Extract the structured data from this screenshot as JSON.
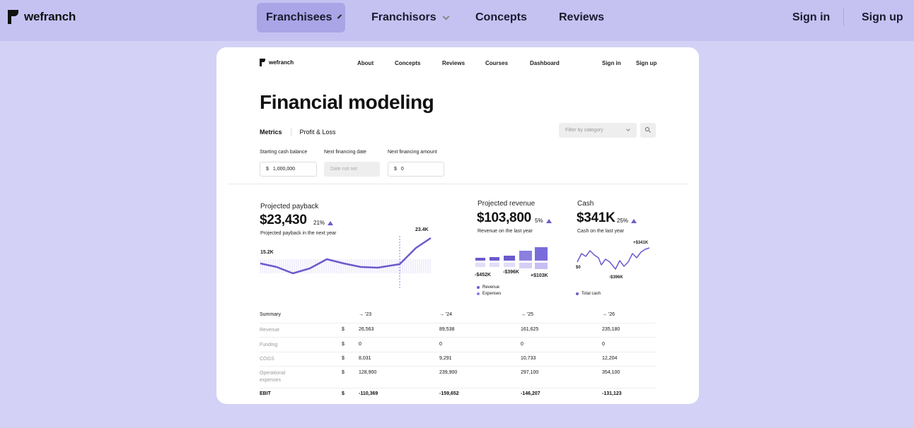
{
  "nav": {
    "brand": "wefranch",
    "items": [
      {
        "label": "Franchisees",
        "has_dropdown": true,
        "active": true
      },
      {
        "label": "Franchisors",
        "has_dropdown": true,
        "active": false
      },
      {
        "label": "Concepts",
        "has_dropdown": false,
        "active": false
      },
      {
        "label": "Reviews",
        "has_dropdown": false,
        "active": false
      }
    ],
    "sign_in": "Sign in",
    "sign_up": "Sign up",
    "colors": {
      "bar": "#c5c2f2",
      "active": "#a9a5e6",
      "page": "#d4d1f6"
    }
  },
  "preview": {
    "brand": "wefranch",
    "nav": [
      "About",
      "Concepts",
      "Reviews",
      "Courses",
      "Dashboard"
    ],
    "sign_in": "Sign in",
    "sign_up": "Sign up",
    "title": "Financial modeling",
    "tabs": [
      "Metrics",
      "Profit & Loss"
    ],
    "filter_placeholder": "Filter by category",
    "fields": [
      {
        "label": "Starting cash balance",
        "currency": "$",
        "value": "1,000,000"
      },
      {
        "label": "Next financing date",
        "currency": "",
        "value": "Date not set"
      },
      {
        "label": "Next financing amount",
        "currency": "$",
        "value": "0"
      }
    ],
    "payback": {
      "label": "Projected payback",
      "value": "$23,430",
      "pct": "21%",
      "sub": "Projected payback in the next year",
      "low_label": "15.2K",
      "high_label": "23.4K"
    },
    "revenue": {
      "label": "Projected revenue",
      "value": "$103,800",
      "pct": "5%",
      "sub": "Revenue on the last year",
      "annotations": [
        "-$452K",
        "-$396K",
        "+$103K"
      ],
      "legend": [
        "Revenue",
        "Expenses"
      ]
    },
    "cash": {
      "label": "Cash",
      "value": "$341K",
      "pct": "25%",
      "sub": "Cash on the last year",
      "annotations": [
        "+$341K",
        "$0",
        "-$396K"
      ],
      "legend": [
        "Total cash"
      ]
    },
    "accent": "#6a5acd",
    "summary": {
      "title": "Summary",
      "years": [
        "→ '23",
        "→ '24",
        "→ '25",
        "→ '26"
      ],
      "rows": [
        {
          "label": "Revenue",
          "cur": "$",
          "values": [
            "26,563",
            "89,538",
            "161,625",
            "235,180"
          ],
          "bold": false
        },
        {
          "label": "Funding",
          "cur": "$",
          "values": [
            "0",
            "0",
            "0",
            "0"
          ],
          "bold": false
        },
        {
          "label": "COGS",
          "cur": "$",
          "values": [
            "8,031",
            "9,291",
            "10,733",
            "12,204"
          ],
          "bold": false
        },
        {
          "label": "Operational expenses",
          "cur": "$",
          "values": [
            "128,900",
            "239,900",
            "297,100",
            "354,100"
          ],
          "bold": false
        },
        {
          "label": "EBIT",
          "cur": "$",
          "values": [
            "-110,369",
            "-159,652",
            "-146,207",
            "-131,123"
          ],
          "bold": true
        }
      ]
    }
  }
}
